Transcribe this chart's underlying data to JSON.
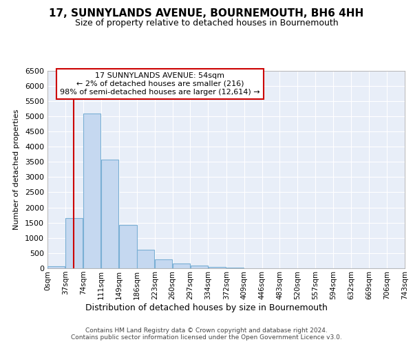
{
  "title": "17, SUNNYLANDS AVENUE, BOURNEMOUTH, BH6 4HH",
  "subtitle": "Size of property relative to detached houses in Bournemouth",
  "xlabel": "Distribution of detached houses by size in Bournemouth",
  "ylabel": "Number of detached properties",
  "footer_line1": "Contains HM Land Registry data © Crown copyright and database right 2024.",
  "footer_line2": "Contains public sector information licensed under the Open Government Licence v3.0.",
  "annotation_line1": "17 SUNNYLANDS AVENUE: 54sqm",
  "annotation_line2": "← 2% of detached houses are smaller (216)",
  "annotation_line3": "98% of semi-detached houses are larger (12,614) →",
  "property_size": 54,
  "bins": [
    0,
    37,
    74,
    111,
    149,
    186,
    223,
    260,
    297,
    334,
    372,
    409,
    446,
    483,
    520,
    557,
    594,
    632,
    669,
    706,
    743
  ],
  "counts": [
    70,
    1650,
    5080,
    3580,
    1420,
    620,
    300,
    150,
    100,
    50,
    20,
    10,
    5,
    2,
    0,
    0,
    0,
    0,
    0,
    0
  ],
  "bar_color": "#c5d8f0",
  "bar_edge_color": "#7aafd4",
  "marker_color": "#cc0000",
  "annotation_box_edgecolor": "#cc0000",
  "plot_bg_color": "#e8eef8",
  "grid_color": "#ffffff",
  "ylim_max": 6500,
  "ytick_step": 500
}
